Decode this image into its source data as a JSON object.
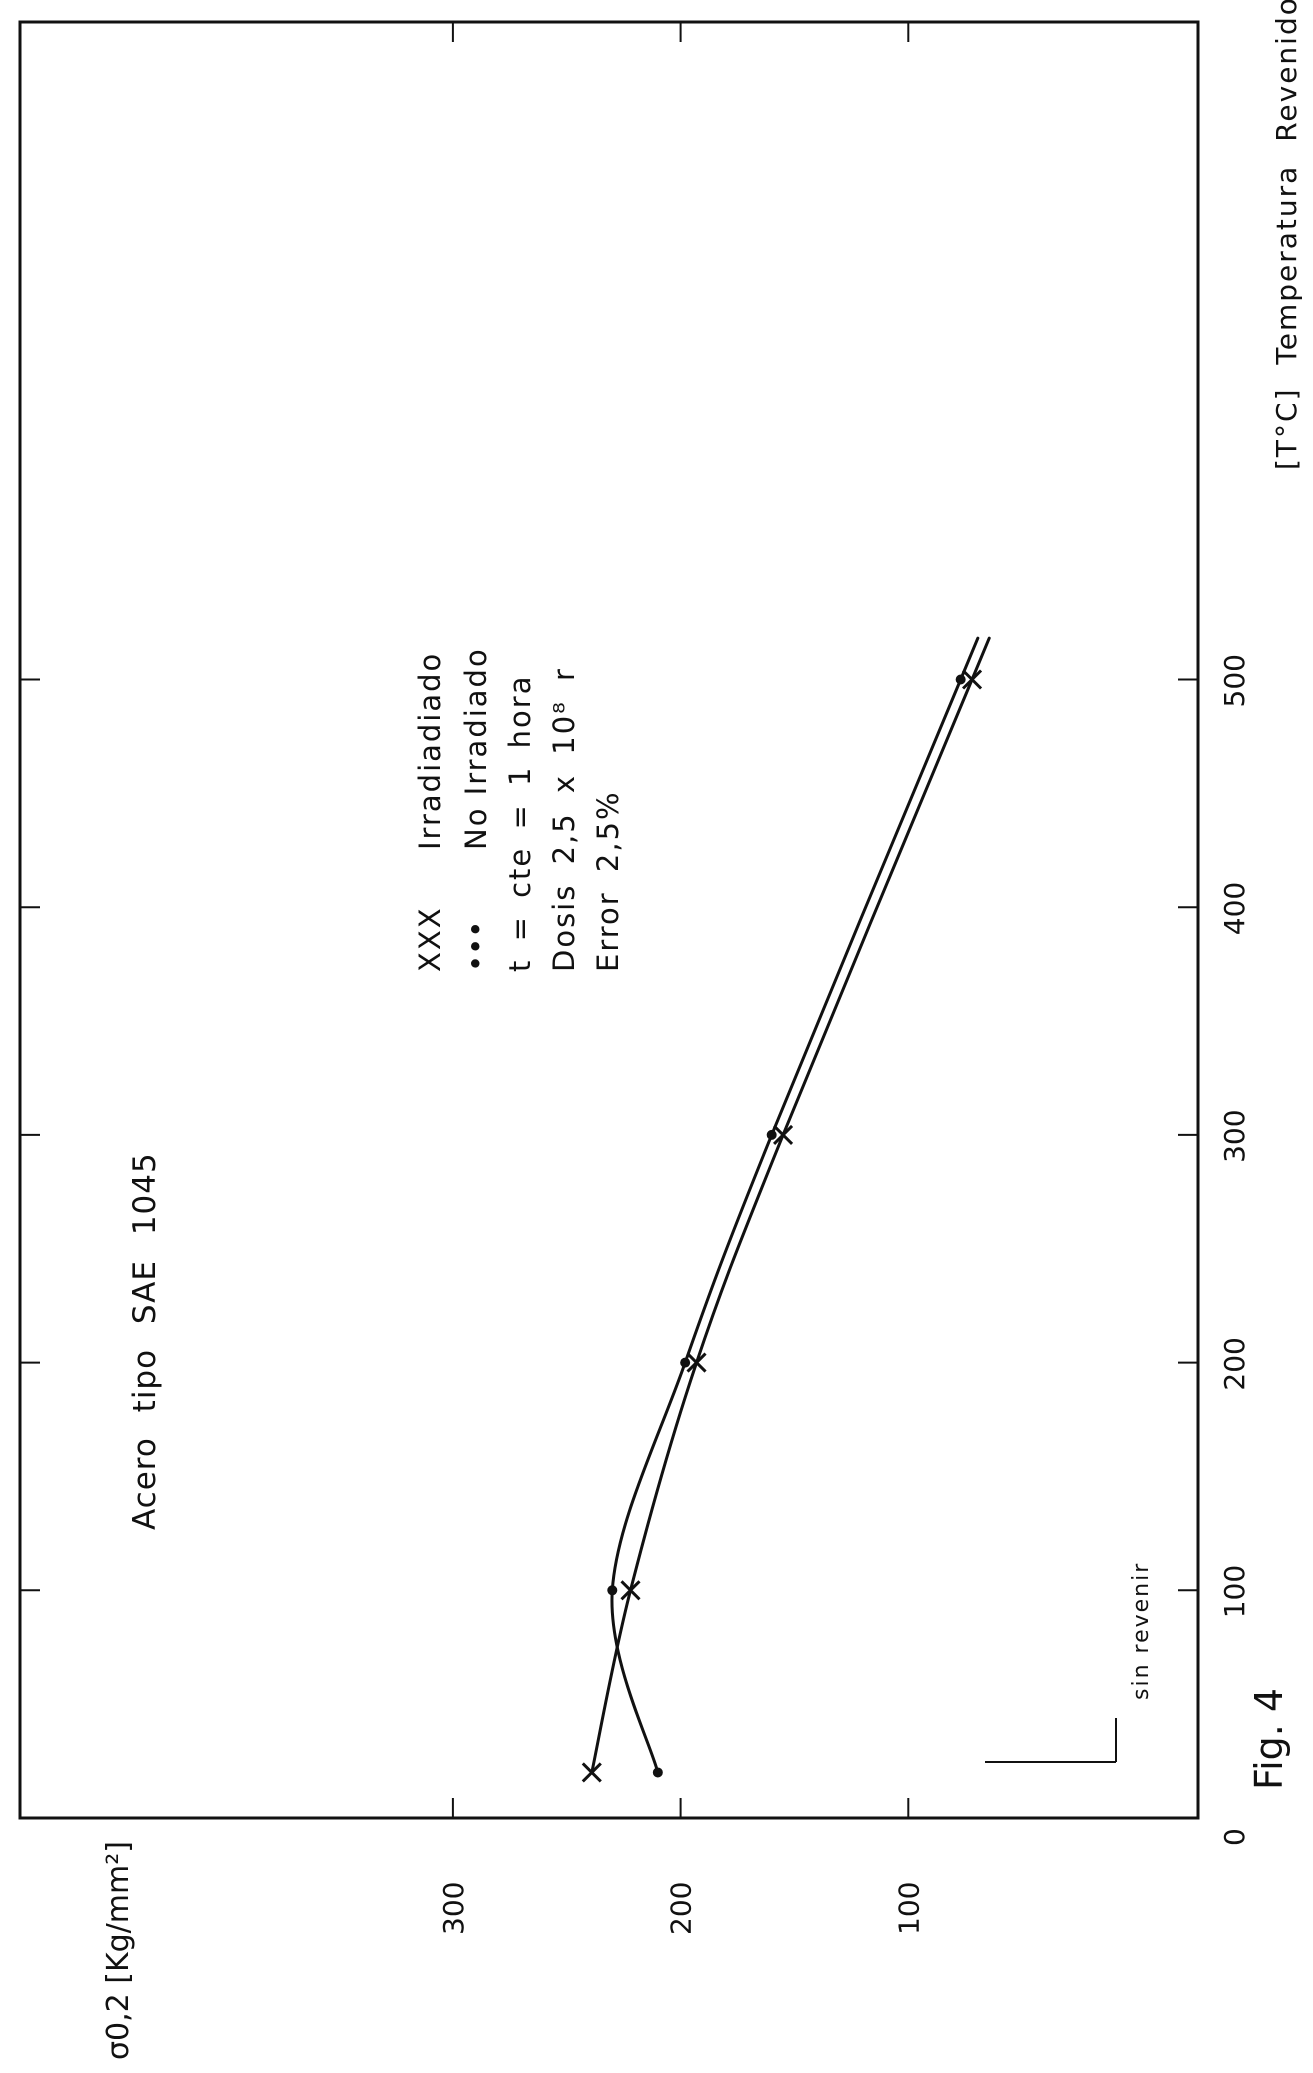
{
  "chart_data": {
    "type": "line",
    "title": "Acero tipo SAE 1045",
    "xlabel": "[T°C] Temperatura Revenido",
    "ylabel": "σ0,2 [Kg/mm²]",
    "x_ticks": [
      "0",
      "100",
      "200",
      "300",
      "400",
      "500"
    ],
    "y_ticks": [
      "100",
      "200",
      "300"
    ],
    "xlim": [
      0,
      600
    ],
    "ylim": [
      0,
      300
    ],
    "annotation": "sin revenir",
    "figure_label": "Fig. 4",
    "legend": {
      "irradiado": {
        "marker": "XXX",
        "label": "Irradiadiado"
      },
      "no_irradiado": {
        "marker": "•••",
        "label": "No Irradiado"
      },
      "notes": [
        "t = cte = 1 hora",
        "Dosis 2,5 x 10⁸ r",
        "Error 2,5%"
      ]
    },
    "series": [
      {
        "name": "Irradiadiado",
        "marker": "x",
        "x": [
          20,
          100,
          200,
          300,
          500
        ],
        "y": [
          239,
          222,
          193,
          155,
          72
        ]
      },
      {
        "name": "No Irradiado",
        "marker": "dot",
        "x": [
          20,
          100,
          200,
          300,
          500
        ],
        "y": [
          210,
          230,
          198,
          160,
          77
        ]
      }
    ]
  }
}
